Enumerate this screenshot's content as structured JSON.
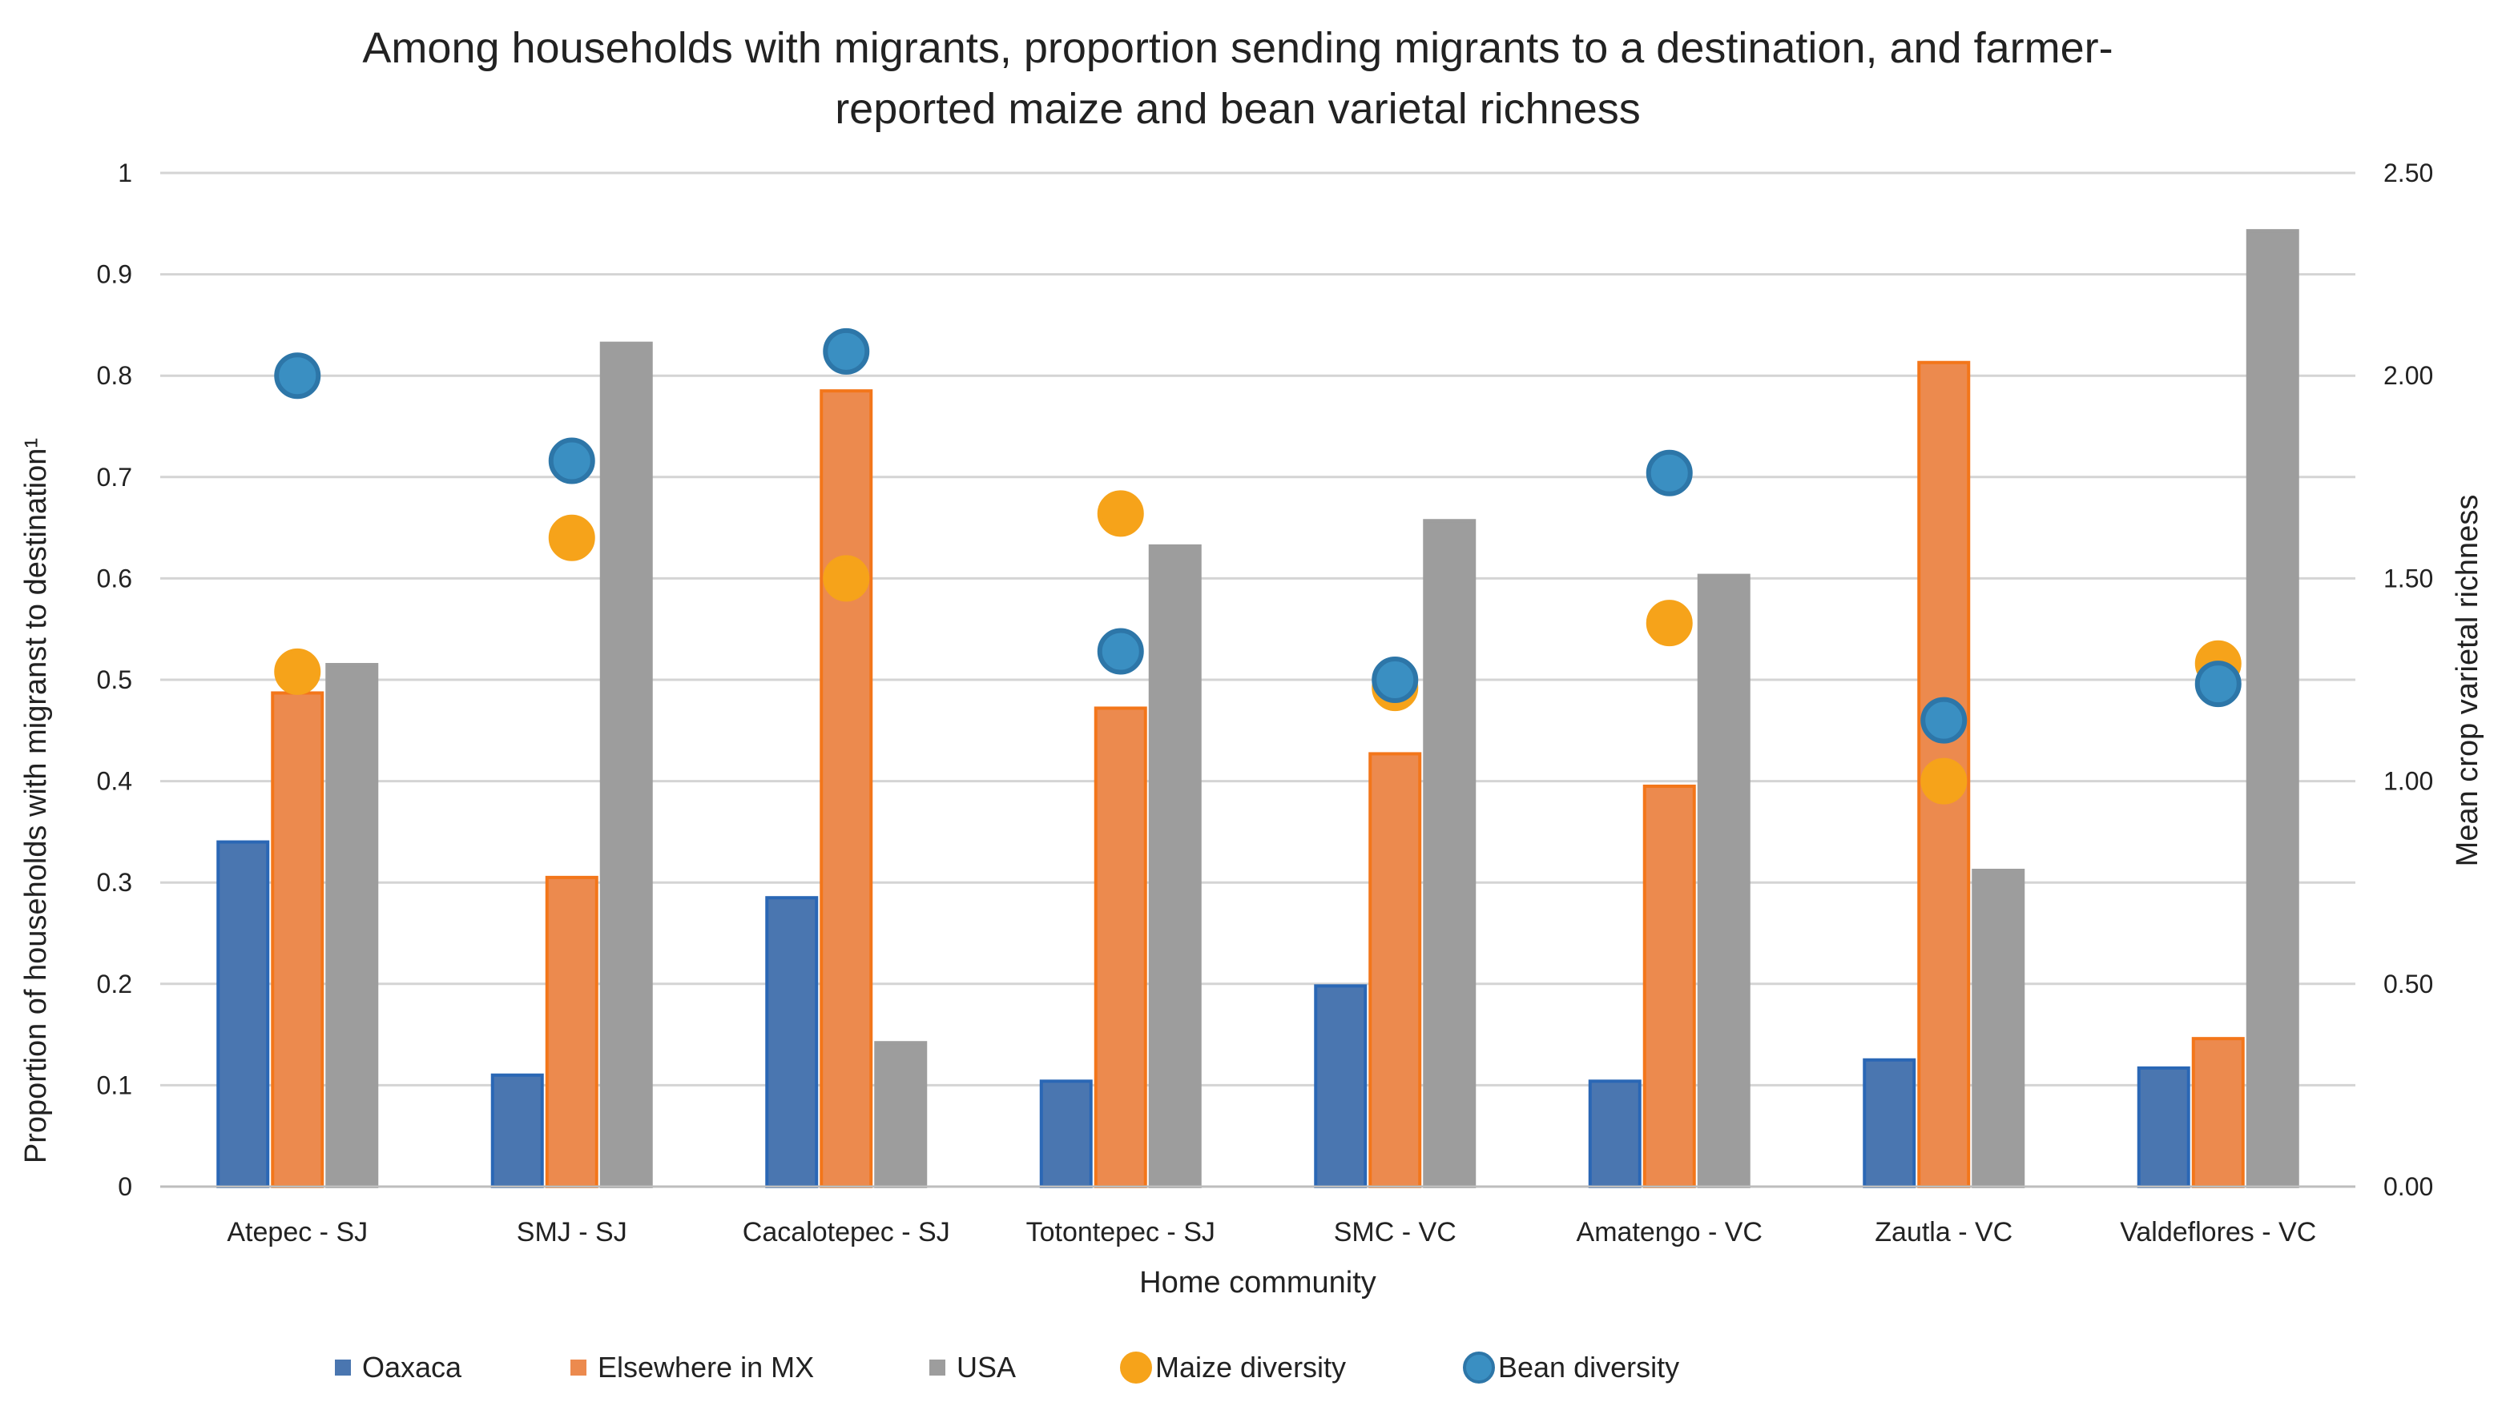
{
  "chart_data": {
    "type": "bar",
    "title_lines": [
      "Among households with migrants, proportion sending migrants to a destination, and farmer-",
      "reported maize and bean varietal richness"
    ],
    "xlabel": "Home community",
    "ylabel": "Proportion of households with migranst to destination¹",
    "y2label": "Mean crop varietal richness",
    "ylim": [
      0,
      1
    ],
    "y2lim": [
      0,
      2.5
    ],
    "yticks": [
      "0",
      "0.1",
      "0.2",
      "0.3",
      "0.4",
      "0.5",
      "0.6",
      "0.7",
      "0.8",
      "0.9",
      "1"
    ],
    "y2ticks": [
      "0.00",
      "0.50",
      "1.00",
      "1.50",
      "2.00",
      "2.50"
    ],
    "categories": [
      "Atepec - SJ",
      "SMJ - SJ",
      "Cacalotepec - SJ",
      "Totontepec - SJ",
      "SMC - VC",
      "Amatengo - VC",
      "Zautla - VC",
      "Valdeflores - VC"
    ],
    "grid": true,
    "legend_position": "bottom",
    "series": [
      {
        "name": "Oaxaca",
        "kind": "bar",
        "axis": "left",
        "color": "#4a76b0",
        "edge": "#2a67b5",
        "values": [
          0.34,
          0.11,
          0.285,
          0.104,
          0.198,
          0.104,
          0.125,
          0.117
        ]
      },
      {
        "name": "Elsewhere in MX",
        "kind": "bar",
        "axis": "left",
        "color": "#ec8a4e",
        "edge": "#f3761a",
        "values": [
          0.487,
          0.305,
          0.785,
          0.472,
          0.427,
          0.395,
          0.813,
          0.146
        ]
      },
      {
        "name": "USA",
        "kind": "bar",
        "axis": "left",
        "color": "#9d9d9d",
        "edge": "#9d9d9d",
        "values": [
          0.515,
          0.832,
          0.142,
          0.632,
          0.657,
          0.603,
          0.312,
          0.943
        ]
      },
      {
        "name": "Maize diversity",
        "kind": "dot",
        "axis": "right",
        "color": "#f6a31a",
        "values": [
          1.27,
          1.6,
          1.5,
          1.66,
          1.23,
          1.39,
          1.0,
          1.29
        ]
      },
      {
        "name": "Bean diversity",
        "kind": "dot",
        "axis": "right",
        "color": "#3a8fc2",
        "edge": "#2d76a8",
        "values": [
          2.0,
          1.79,
          2.06,
          1.32,
          1.25,
          1.76,
          1.15,
          1.24
        ]
      }
    ]
  }
}
